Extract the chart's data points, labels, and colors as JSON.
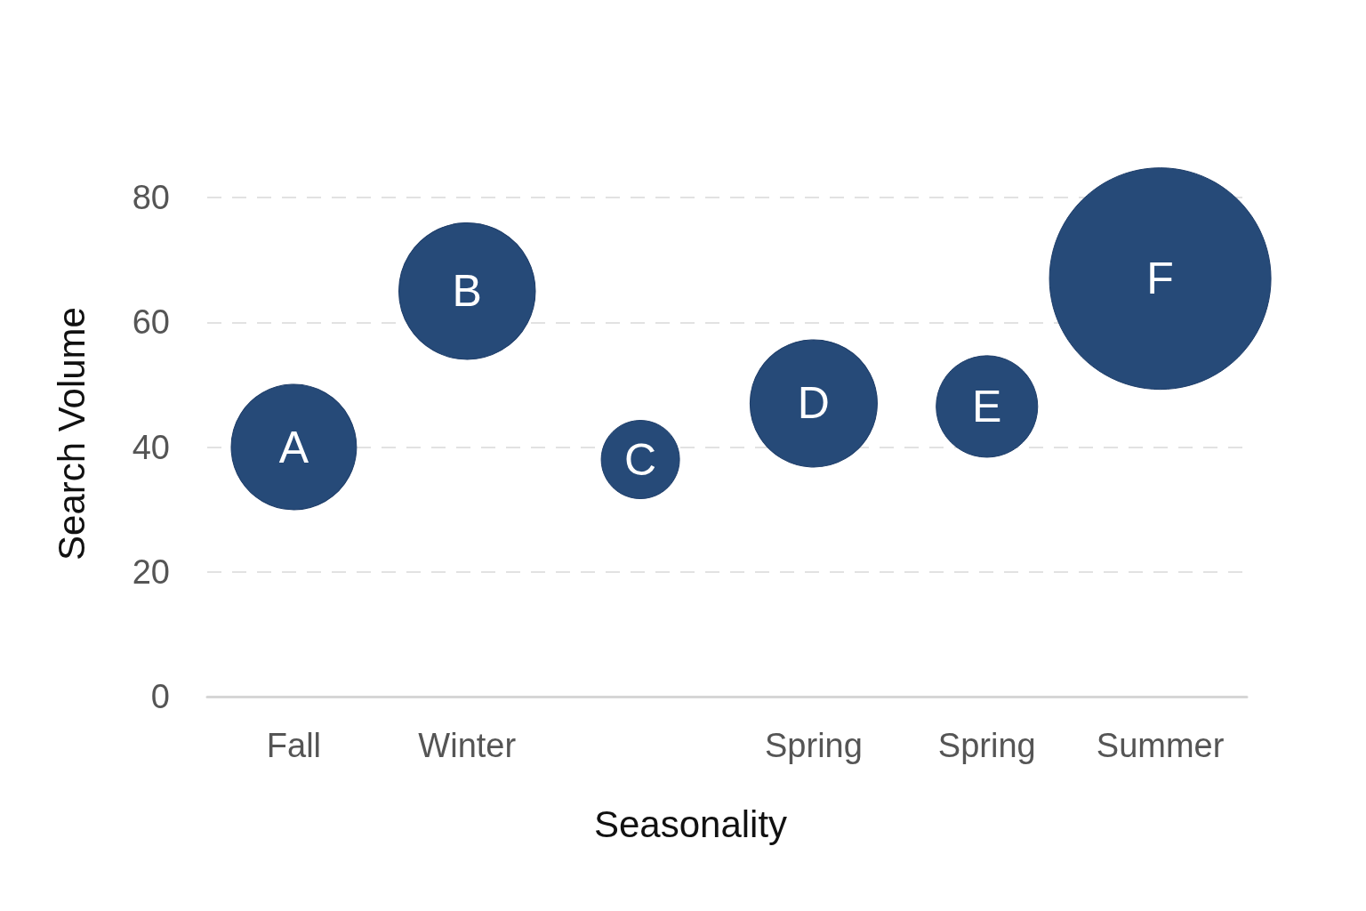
{
  "chart_data": {
    "type": "bubble",
    "xlabel": "Seasonality",
    "ylabel": "Search Volume",
    "categories": [
      "Fall",
      "Winter",
      null,
      "Spring",
      "Spring",
      "Summer"
    ],
    "values": [
      40,
      65,
      38,
      47,
      46.5,
      67
    ],
    "sizes": [
      0.32,
      0.38,
      0.125,
      0.33,
      0.21,
      1
    ],
    "value_labels": [
      "A",
      "B",
      "C",
      "D",
      "E",
      "F"
    ],
    "color": "#264a78",
    "ylim": [
      0,
      80
    ],
    "yticks": [
      0,
      20,
      40,
      60,
      80
    ],
    "grid": "y"
  }
}
